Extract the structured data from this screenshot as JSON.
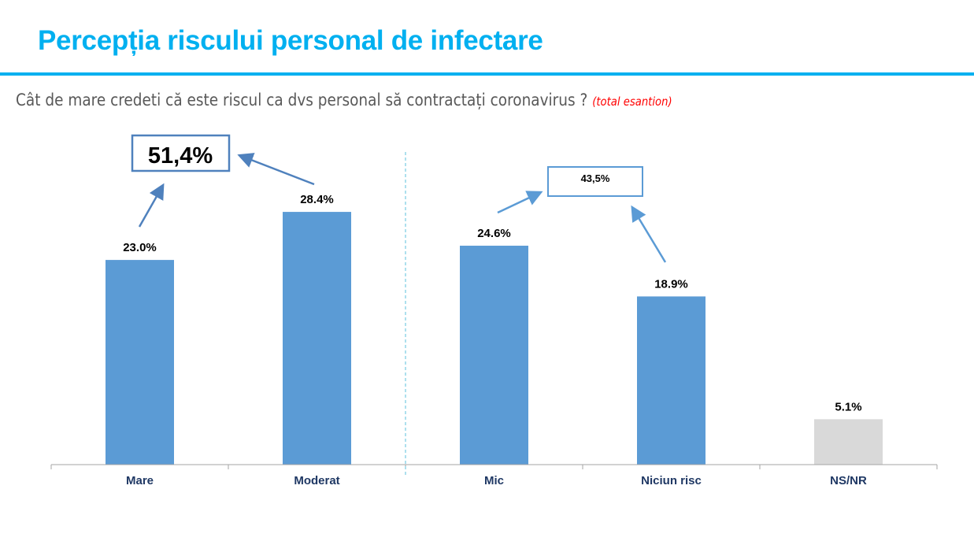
{
  "title": "Percepția riscului personal de infectare",
  "question": "Cât de mare credeti că este riscul ca dvs personal să contractați coronavirus ?",
  "question_note": "(total esantion)",
  "chart_data": {
    "type": "bar",
    "categories": [
      "Mare",
      "Moderat",
      "Mic",
      "Niciun risc",
      "NS/NR"
    ],
    "values": [
      23.0,
      28.4,
      24.6,
      18.9,
      5.1
    ],
    "data_labels": [
      "23.0%",
      "28.4%",
      "24.6%",
      "18.9%",
      "5.1%"
    ],
    "bar_colors": [
      "#5b9bd5",
      "#5b9bd5",
      "#5b9bd5",
      "#5b9bd5",
      "#d9d9d9"
    ],
    "ylim": [
      0,
      30
    ],
    "grid": false,
    "annotations": [
      {
        "text": "51,4%",
        "groups": [
          "Mare",
          "Moderat"
        ]
      },
      {
        "text": "43,5%",
        "groups": [
          "Mic",
          "Niciun risc"
        ]
      }
    ],
    "separator_after": "Moderat"
  },
  "colors": {
    "title": "#00b0f0",
    "bar": "#5b9bd5",
    "note": "#ff0000"
  }
}
